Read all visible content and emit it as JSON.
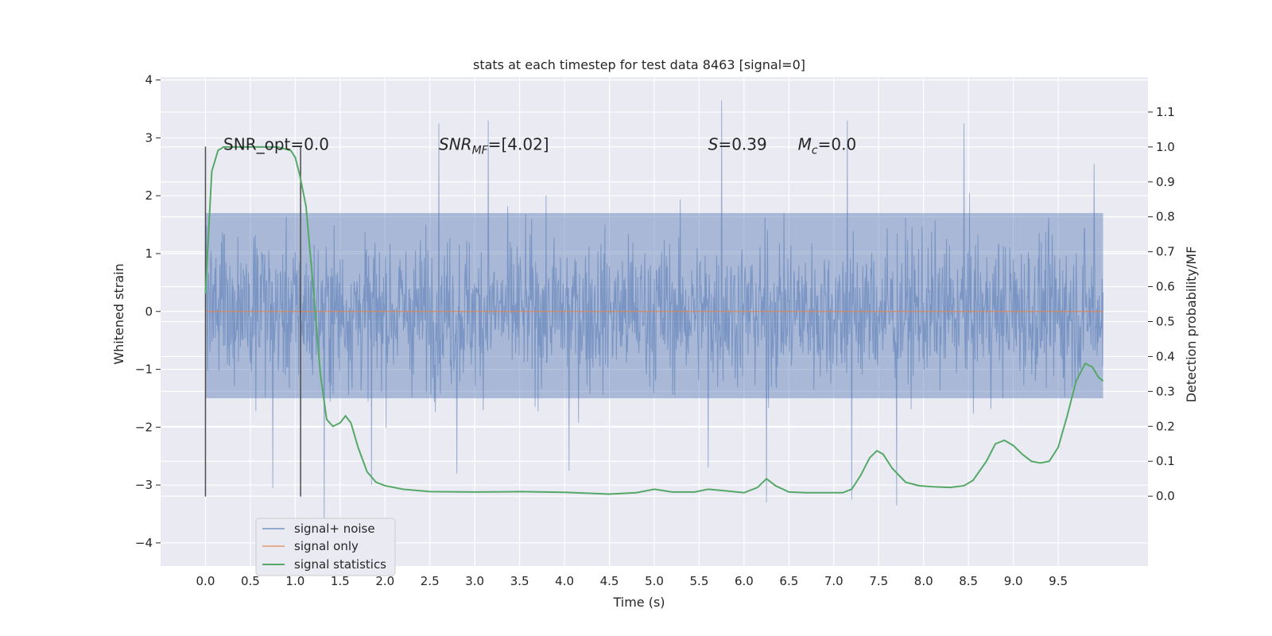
{
  "chart_data": {
    "type": "line",
    "title": "stats at each timestep for test data 8463 [signal=0]",
    "xlabel": "Time (s)",
    "ylabel": "Whitened strain",
    "ylabel_right": "Detection probability/MF",
    "xlim": [
      -0.5,
      10.5
    ],
    "ylim": [
      -4.4,
      4.05
    ],
    "ylim_right": [
      -0.2,
      1.2
    ],
    "x_ticks": [
      0.0,
      0.5,
      1.0,
      1.5,
      2.0,
      2.5,
      3.0,
      3.5,
      4.0,
      4.5,
      5.0,
      5.5,
      6.0,
      6.5,
      7.0,
      7.5,
      8.0,
      8.5,
      9.0,
      9.5
    ],
    "x_tick_labels": [
      "0.0",
      "0.5",
      "1.0",
      "1.5",
      "2.0",
      "2.5",
      "3.0",
      "3.5",
      "4.0",
      "4.5",
      "5.0",
      "5.5",
      "6.0",
      "6.5",
      "7.0",
      "7.5",
      "8.0",
      "8.5",
      "9.0",
      "9.5"
    ],
    "y_ticks": [
      4,
      3,
      2,
      1,
      0,
      -1,
      -2,
      -3,
      -4
    ],
    "y_tick_labels": [
      "4",
      "3",
      "2",
      "1",
      "0",
      "−1",
      "−2",
      "−3",
      "−4"
    ],
    "y_right_ticks": [
      1.1,
      1.0,
      0.9,
      0.8,
      0.7,
      0.6,
      0.5,
      0.4,
      0.3,
      0.2,
      0.1,
      0.0
    ],
    "y_right_tick_labels": [
      "1.1",
      "1.0",
      "0.9",
      "0.8",
      "0.7",
      "0.6",
      "0.5",
      "0.4",
      "0.3",
      "0.2",
      "0.1",
      "0.0"
    ],
    "annotations": [
      {
        "x": 0.2,
        "y": 2.85,
        "text": "SNR_opt=0.0",
        "id": "snr-opt"
      },
      {
        "x": 2.6,
        "y": 2.85,
        "text": "SNR",
        "sub": "MF",
        "tail": "=[4.02]",
        "italic": true,
        "id": "snr-mf"
      },
      {
        "x": 5.6,
        "y": 2.85,
        "text": "S",
        "tail": "=0.39",
        "italic": true,
        "id": "s-stat"
      },
      {
        "x": 6.6,
        "y": 2.85,
        "text": "M",
        "sub": "c",
        "tail": "=0.0",
        "italic": true,
        "id": "mc"
      }
    ],
    "vlines": [
      {
        "x": 0.0,
        "ymin": -3.2,
        "ymax": 2.85
      },
      {
        "x": 1.06,
        "ymin": -3.2,
        "ymax": 2.85
      }
    ],
    "series": [
      {
        "name": "signal+ noise",
        "color": "#4c72b0",
        "alpha": 0.5,
        "style": "dense-noise",
        "x_range": [
          0.0,
          10.0
        ],
        "typical_range": [
          -1.5,
          1.7
        ],
        "extremes": [
          {
            "x": 1.32,
            "y": -3.6
          },
          {
            "x": 5.75,
            "y": 3.65
          },
          {
            "x": 6.25,
            "y": -3.3
          },
          {
            "x": 7.15,
            "y": 3.3
          },
          {
            "x": 7.7,
            "y": -3.35
          },
          {
            "x": 2.6,
            "y": 3.25
          },
          {
            "x": 3.15,
            "y": 3.3
          },
          {
            "x": 8.45,
            "y": 3.25
          },
          {
            "x": 0.75,
            "y": -3.05
          },
          {
            "x": 1.85,
            "y": -3.0
          },
          {
            "x": 2.8,
            "y": -2.8
          },
          {
            "x": 4.05,
            "y": -2.75
          },
          {
            "x": 5.6,
            "y": -2.7
          },
          {
            "x": 7.2,
            "y": -3.25
          },
          {
            "x": 9.9,
            "y": 2.55
          }
        ]
      },
      {
        "name": "signal only",
        "color": "#dd8452",
        "x": [
          0.0,
          10.0
        ],
        "y": [
          0.0,
          0.0
        ]
      },
      {
        "name": "signal statistics",
        "color": "#55a868",
        "axis": "right",
        "x": [
          0.0,
          0.07,
          0.14,
          0.2,
          0.3,
          0.5,
          0.8,
          0.95,
          1.0,
          1.05,
          1.12,
          1.2,
          1.28,
          1.35,
          1.42,
          1.5,
          1.56,
          1.62,
          1.7,
          1.8,
          1.9,
          2.0,
          2.2,
          2.5,
          3.0,
          3.5,
          4.0,
          4.5,
          4.8,
          5.0,
          5.2,
          5.45,
          5.6,
          5.8,
          6.0,
          6.15,
          6.25,
          6.35,
          6.5,
          6.7,
          6.9,
          7.1,
          7.2,
          7.3,
          7.4,
          7.48,
          7.55,
          7.65,
          7.8,
          7.95,
          8.1,
          8.3,
          8.45,
          8.55,
          8.7,
          8.8,
          8.9,
          9.0,
          9.1,
          9.2,
          9.3,
          9.4,
          9.5,
          9.6,
          9.7,
          9.8,
          9.88,
          9.95,
          10.0
        ],
        "y": [
          0.58,
          0.93,
          0.99,
          1.0,
          1.0,
          1.0,
          1.0,
          0.99,
          0.97,
          0.92,
          0.83,
          0.6,
          0.35,
          0.22,
          0.2,
          0.21,
          0.23,
          0.21,
          0.14,
          0.07,
          0.04,
          0.03,
          0.02,
          0.013,
          0.012,
          0.013,
          0.011,
          0.006,
          0.01,
          0.02,
          0.012,
          0.012,
          0.02,
          0.015,
          0.01,
          0.025,
          0.05,
          0.03,
          0.012,
          0.01,
          0.01,
          0.01,
          0.02,
          0.06,
          0.11,
          0.13,
          0.12,
          0.08,
          0.04,
          0.03,
          0.027,
          0.025,
          0.03,
          0.045,
          0.1,
          0.15,
          0.16,
          0.145,
          0.12,
          0.1,
          0.095,
          0.1,
          0.14,
          0.23,
          0.33,
          0.38,
          0.37,
          0.34,
          0.33
        ]
      }
    ],
    "legend": {
      "placement": "lower-left",
      "entries": [
        "signal+ noise",
        "signal only",
        "signal statistics"
      ]
    },
    "grid": true
  }
}
